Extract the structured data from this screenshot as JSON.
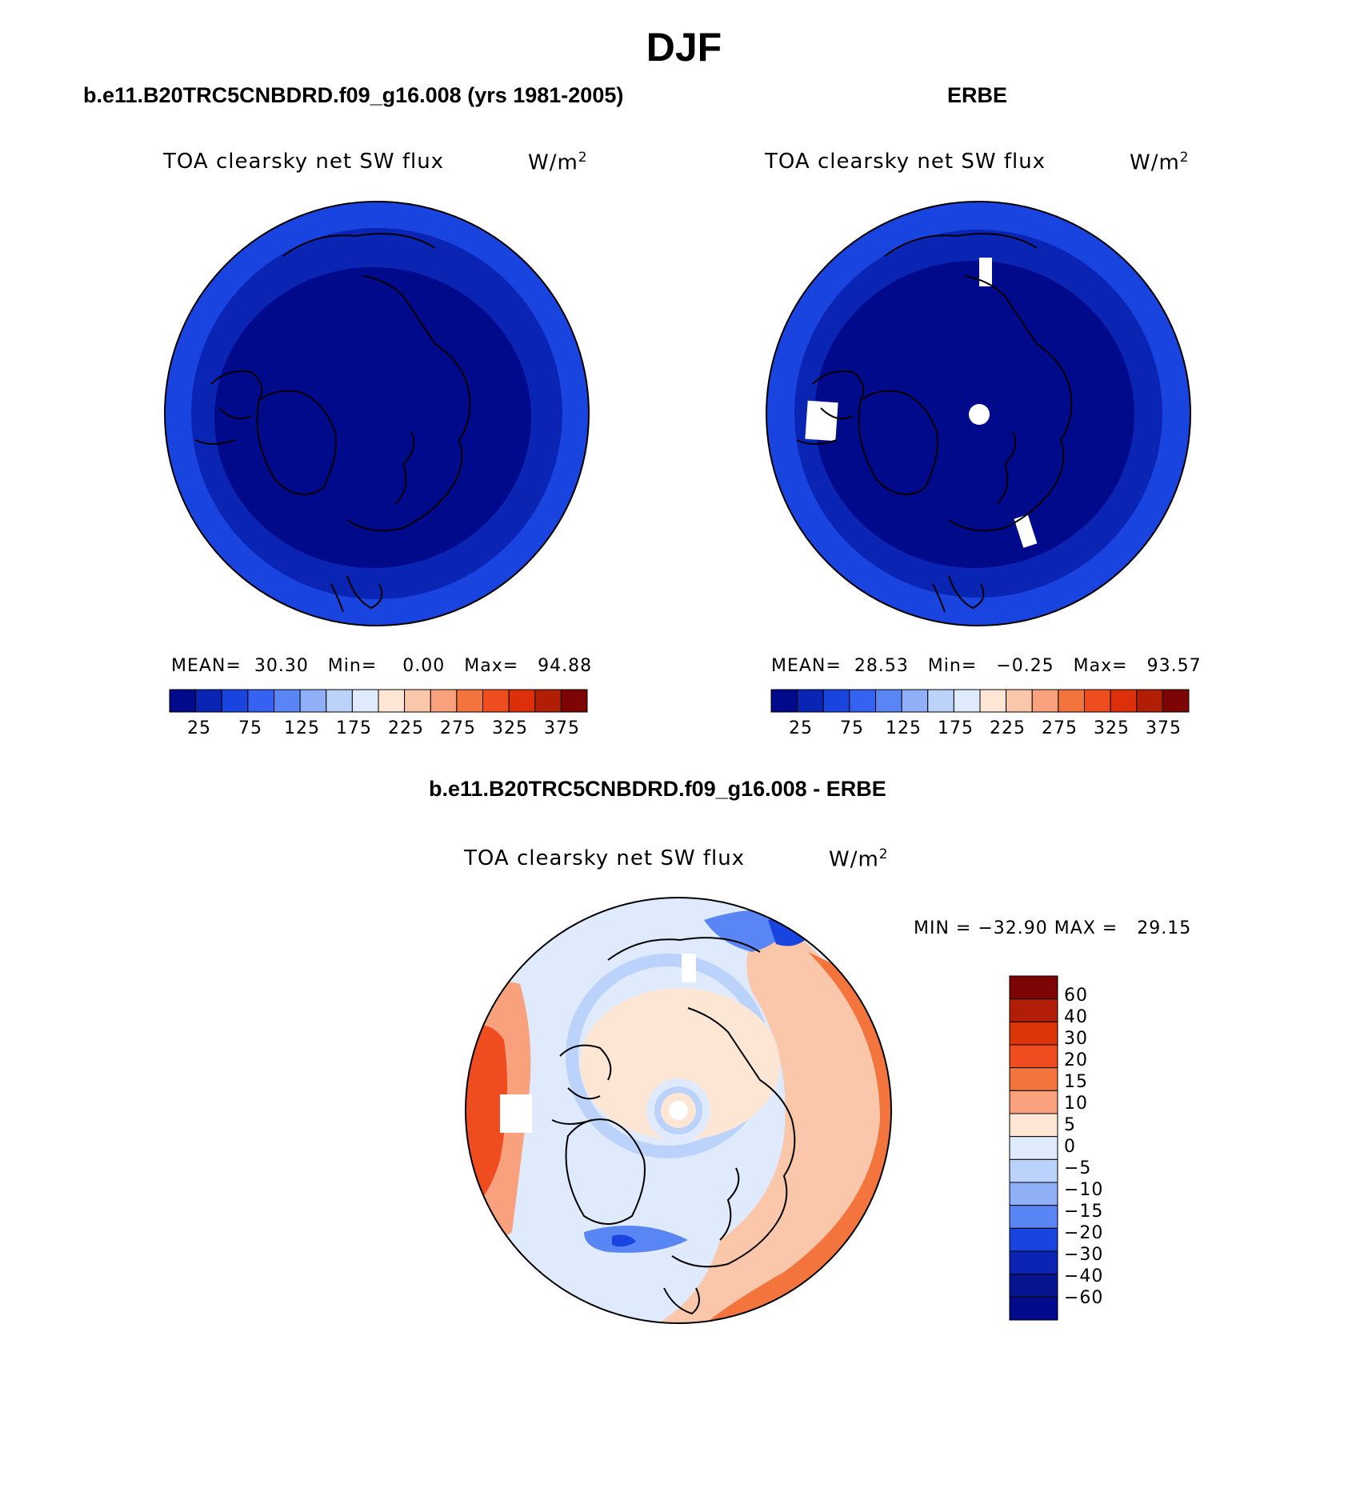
{
  "figure": {
    "season": "DJF",
    "colors": {
      "seq": [
        "#020a8c",
        "#0a25b4",
        "#1a44e0",
        "#3562f0",
        "#5a85f5",
        "#8fb0f7",
        "#bbd3fb",
        "#dfeafd",
        "#fde6d4",
        "#fbc7aa",
        "#f8a17c",
        "#f4743e",
        "#ef4c20",
        "#dc2f0a",
        "#b21e05",
        "#7e0505"
      ],
      "diff": [
        "#7e0505",
        "#b21e05",
        "#dc3508",
        "#ef4c20",
        "#f4743e",
        "#f8a17c",
        "#fde6d4",
        "#dfeafd",
        "#bbd3fb",
        "#8fb0f7",
        "#5a85f5",
        "#1a44e0",
        "#0a25b4",
        "#06148f",
        "#020a8c"
      ]
    }
  },
  "panels": [
    {
      "subtitle": "b.e11.B20TRC5CNBDRD.f09_g16.008 (yrs 1981-2005)",
      "variable": "TOA clearsky net SW flux",
      "units_base": "W/m",
      "units_exp": "2",
      "stats": {
        "mean_label": "MEAN=",
        "mean": "30.30",
        "min_label": "Min=",
        "min": "0.00",
        "max_label": "Max=",
        "max": "94.88"
      },
      "colorbar_ticks": [
        "25",
        "75",
        "125",
        "175",
        "225",
        "275",
        "325",
        "375"
      ]
    },
    {
      "subtitle": "ERBE",
      "variable": "TOA clearsky net SW flux",
      "units_base": "W/m",
      "units_exp": "2",
      "stats": {
        "mean_label": "MEAN=",
        "mean": "28.53",
        "min_label": "Min=",
        "min": "−0.25",
        "max_label": "Max=",
        "max": "93.57"
      },
      "colorbar_ticks": [
        "25",
        "75",
        "125",
        "175",
        "225",
        "275",
        "325",
        "375"
      ]
    },
    {
      "subtitle": "b.e11.B20TRC5CNBDRD.f09_g16.008 - ERBE",
      "variable": "TOA clearsky net SW flux",
      "units_base": "W/m",
      "units_exp": "2",
      "stats": {
        "min_label": "MIN =",
        "min": "−32.90",
        "max_label": "MAX =",
        "max": "29.15"
      },
      "colorbar_ticks": [
        "60",
        "40",
        "30",
        "20",
        "15",
        "10",
        "5",
        "0",
        "−5",
        "−10",
        "−15",
        "−20",
        "−30",
        "−40",
        "−60"
      ]
    }
  ]
}
